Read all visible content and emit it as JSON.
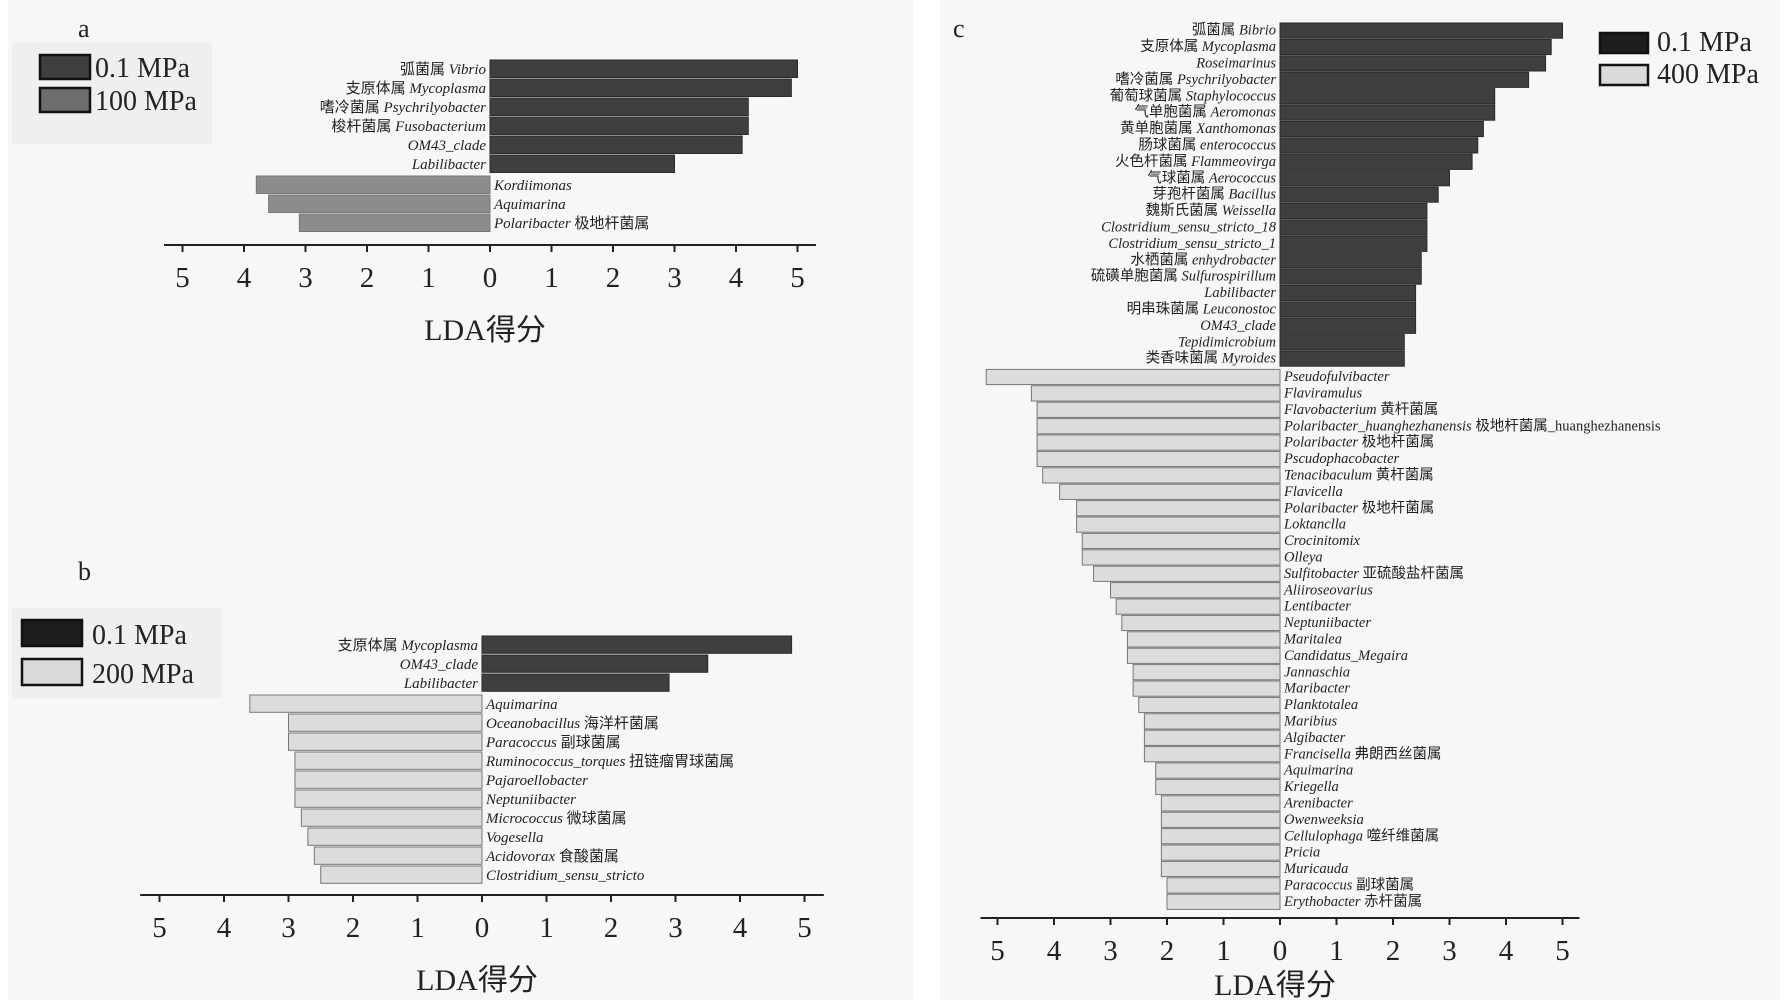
{
  "chart_data": [
    {
      "panel": "a",
      "type": "bar",
      "orientation": "horizontal-diverging",
      "xlabel": "LDA得分",
      "xticks": [
        "5",
        "4",
        "3",
        "2",
        "1",
        "0",
        "1",
        "2",
        "3",
        "4",
        "5"
      ],
      "legend": [
        {
          "name": "0.1 MPa",
          "color": "#3f3f3f"
        },
        {
          "name": "100 MPa",
          "color": "#6e6e6e"
        }
      ],
      "series": [
        {
          "name": "0.1 MPa",
          "color": "#3f3f3f",
          "side": "right",
          "bars": [
            {
              "zh": "弧菌属",
              "latin": "Vibrio",
              "value": 5.0
            },
            {
              "zh": "支原体属",
              "latin": "Mycoplasma",
              "value": 4.9
            },
            {
              "zh": "嗜冷菌属",
              "latin": "Psychrilyobacter",
              "value": 4.2
            },
            {
              "zh": "梭杆菌属",
              "latin": "Fusobacterium",
              "value": 4.2
            },
            {
              "zh": "",
              "latin": "OM43_clade",
              "value": 4.1
            },
            {
              "zh": "",
              "latin": "Labilibacter",
              "value": 3.0
            }
          ]
        },
        {
          "name": "100 MPa",
          "color": "#8c8c8c",
          "side": "left",
          "bars": [
            {
              "latin": "Kordiimonas",
              "zh": "",
              "value": 3.8
            },
            {
              "latin": "Aquimarina",
              "zh": "",
              "value": 3.6
            },
            {
              "latin": "Polaribacter",
              "zh": "极地杆菌属",
              "value": 3.1
            }
          ]
        }
      ]
    },
    {
      "panel": "b",
      "type": "bar",
      "orientation": "horizontal-diverging",
      "xlabel": "LDA得分",
      "xticks": [
        "5",
        "4",
        "3",
        "2",
        "1",
        "0",
        "1",
        "2",
        "3",
        "4",
        "5"
      ],
      "legend": [
        {
          "name": "0.1 MPa",
          "color": "#1e1e1e"
        },
        {
          "name": "200 MPa",
          "color": "#d9d9d9"
        }
      ],
      "series": [
        {
          "name": "0.1 MPa",
          "color": "#3f3f3f",
          "side": "right",
          "bars": [
            {
              "zh": "支原体属",
              "latin": "Mycoplasma",
              "value": 4.8
            },
            {
              "zh": "",
              "latin": "OM43_clade",
              "value": 3.5
            },
            {
              "zh": "",
              "latin": "Labilibacter",
              "value": 2.9
            }
          ]
        },
        {
          "name": "200 MPa",
          "color": "#dcdcdc",
          "side": "left",
          "bars": [
            {
              "latin": "Aquimarina",
              "zh": "",
              "value": 3.6
            },
            {
              "latin": "Oceanobacillus",
              "zh": "海洋杆菌属",
              "value": 3.0
            },
            {
              "latin": "Paracoccus",
              "zh": "副球菌属",
              "value": 3.0
            },
            {
              "latin": "Ruminococcus_torques",
              "zh": "扭链瘤胃球菌属",
              "value": 2.9
            },
            {
              "latin": "Pajaroellobacter",
              "zh": "",
              "value": 2.9
            },
            {
              "latin": "Neptuniibacter",
              "zh": "",
              "value": 2.9
            },
            {
              "latin": "Micrococcus",
              "zh": "微球菌属",
              "value": 2.8
            },
            {
              "latin": "Vogesella",
              "zh": "",
              "value": 2.7
            },
            {
              "latin": "Acidovorax",
              "zh": "食酸菌属",
              "value": 2.6
            },
            {
              "latin": "Clostridium_sensu_stricto",
              "zh": "",
              "value": 2.5
            }
          ]
        }
      ]
    },
    {
      "panel": "c",
      "type": "bar",
      "orientation": "horizontal-diverging",
      "xlabel": "LDA得分",
      "xticks": [
        "5",
        "4",
        "3",
        "2",
        "1",
        "0",
        "1",
        "2",
        "3",
        "4",
        "5"
      ],
      "legend": [
        {
          "name": "0.1 MPa",
          "color": "#1e1e1e"
        },
        {
          "name": "400 MPa",
          "color": "#d9d9d9"
        }
      ],
      "series": [
        {
          "name": "0.1 MPa",
          "color": "#3f3f3f",
          "side": "right",
          "bars": [
            {
              "zh": "弧菌属",
              "latin": "Bibrio",
              "value": 5.0
            },
            {
              "zh": "支原体属",
              "latin": "Mycoplasma",
              "value": 4.8
            },
            {
              "zh": "",
              "latin": "Roseimarinus",
              "value": 4.7
            },
            {
              "zh": "嗜冷菌属",
              "latin": "Psychrilyobacter",
              "value": 4.4
            },
            {
              "zh": "葡萄球菌属",
              "latin": "Staphylococcus",
              "value": 3.8
            },
            {
              "zh": "气单胞菌属",
              "latin": "Aeromonas",
              "value": 3.8
            },
            {
              "zh": "黄单胞菌属",
              "latin": "Xanthomonas",
              "value": 3.6
            },
            {
              "zh": "肠球菌属",
              "latin": "enterococcus",
              "value": 3.5
            },
            {
              "zh": "火色杆菌属",
              "latin": "Flammeovirga",
              "value": 3.4
            },
            {
              "zh": "气球菌属",
              "latin": "Aerococcus",
              "value": 3.0
            },
            {
              "zh": "芽孢杆菌属",
              "latin": "Bacillus",
              "value": 2.8
            },
            {
              "zh": "魏斯氏菌属",
              "latin": "Weissella",
              "value": 2.6
            },
            {
              "zh": "",
              "latin": "Clostridium_sensu_stricto_18",
              "value": 2.6
            },
            {
              "zh": "",
              "latin": "Clostridium_sensu_stricto_1",
              "value": 2.6
            },
            {
              "zh": "水栖菌属",
              "latin": "enhydrobacter",
              "value": 2.5
            },
            {
              "zh": "硫磺单胞菌属",
              "latin": "Sulfurospirillum",
              "value": 2.5
            },
            {
              "zh": "",
              "latin": "Labilibacter",
              "value": 2.4
            },
            {
              "zh": "明串珠菌属",
              "latin": "Leuconostoc",
              "value": 2.4
            },
            {
              "zh": "",
              "latin": "OM43_clade",
              "value": 2.4
            },
            {
              "zh": "",
              "latin": "Tepidimicrobium",
              "value": 2.2
            },
            {
              "zh": "类香味菌属",
              "latin": "Myroides",
              "value": 2.2
            }
          ]
        },
        {
          "name": "400 MPa",
          "color": "#dcdcdc",
          "side": "left",
          "bars": [
            {
              "latin": "Pseudofulvibacter",
              "zh": "",
              "value": 5.2
            },
            {
              "latin": "Flaviramulus",
              "zh": "",
              "value": 4.4
            },
            {
              "latin": "Flavobacterium",
              "zh": "黄杆菌属",
              "value": 4.3
            },
            {
              "latin": "Polaribacter_huanghezhanensis",
              "zh": "极地杆菌属_huanghezhanensis",
              "value": 4.3
            },
            {
              "latin": "Polaribacter",
              "zh": "极地杆菌属",
              "value": 4.3
            },
            {
              "latin": "Pscudophacobacter",
              "zh": "",
              "value": 4.3
            },
            {
              "latin": "Tenacibaculum",
              "zh": "黄杆菌属",
              "value": 4.2
            },
            {
              "latin": "Flavicella",
              "zh": "",
              "value": 3.9
            },
            {
              "latin": "Polaribacter",
              "zh": "极地杆菌属",
              "value": 3.6
            },
            {
              "latin": "Loktanclla",
              "zh": "",
              "value": 3.6
            },
            {
              "latin": "Crocinitomix",
              "zh": "",
              "value": 3.5
            },
            {
              "latin": "Olleya",
              "zh": "",
              "value": 3.5
            },
            {
              "latin": "Sulfitobacter",
              "zh": "亚硫酸盐杆菌属",
              "value": 3.3
            },
            {
              "latin": "Aliiroseovarius",
              "zh": "",
              "value": 3.0
            },
            {
              "latin": "Lentibacter",
              "zh": "",
              "value": 2.9
            },
            {
              "latin": "Neptuniibacter",
              "zh": "",
              "value": 2.8
            },
            {
              "latin": "Maritalea",
              "zh": "",
              "value": 2.7
            },
            {
              "latin": "Candidatus_Megaira",
              "zh": "",
              "value": 2.7
            },
            {
              "latin": "Jannaschia",
              "zh": "",
              "value": 2.6
            },
            {
              "latin": "Maribacter",
              "zh": "",
              "value": 2.6
            },
            {
              "latin": "Planktotalea",
              "zh": "",
              "value": 2.5
            },
            {
              "latin": "Maribius",
              "zh": "",
              "value": 2.4
            },
            {
              "latin": "Algibacter",
              "zh": "",
              "value": 2.4
            },
            {
              "latin": "Francisella",
              "zh": "弗朗西丝菌属",
              "value": 2.4
            },
            {
              "latin": "Aquimarina",
              "zh": "",
              "value": 2.2
            },
            {
              "latin": "Kriegella",
              "zh": "",
              "value": 2.2
            },
            {
              "latin": "Arenibacter",
              "zh": "",
              "value": 2.1
            },
            {
              "latin": "Owenweeksia",
              "zh": "",
              "value": 2.1
            },
            {
              "latin": "Cellulophaga",
              "zh": "噬纤维菌属",
              "value": 2.1
            },
            {
              "latin": "Pricia",
              "zh": "",
              "value": 2.1
            },
            {
              "latin": "Muricauda",
              "zh": "",
              "value": 2.1
            },
            {
              "latin": "Paracoccus",
              "zh": "副球菌属",
              "value": 2.0
            },
            {
              "latin": "Erythobacter",
              "zh": "赤杆菌属",
              "value": 2.0
            }
          ]
        }
      ]
    }
  ]
}
